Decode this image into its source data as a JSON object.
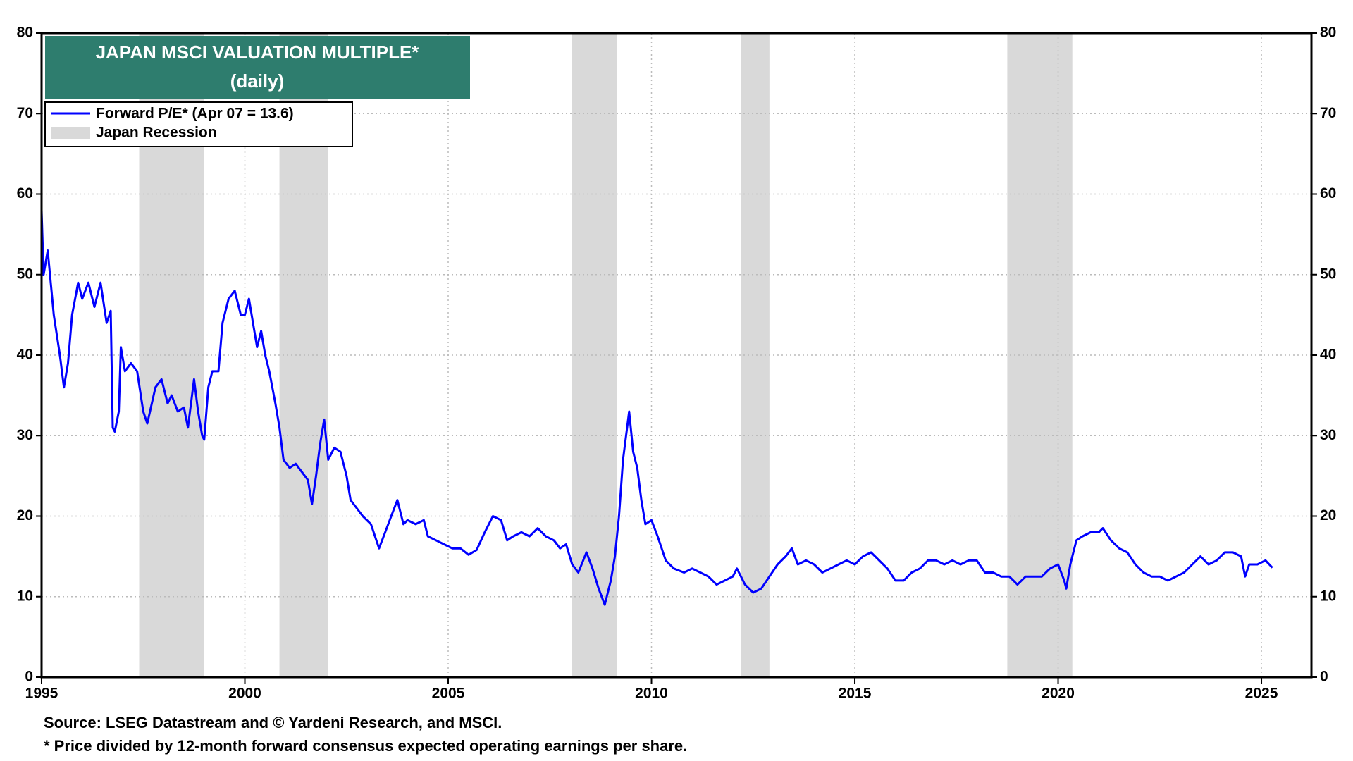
{
  "chart_data": {
    "type": "line",
    "title": "JAPAN MSCI VALUATION MULTIPLE*",
    "subtitle": "(daily)",
    "source": "Source: LSEG Datastream and © Yardeni Research, and MSCI.",
    "note": "* Price divided by 12-month forward consensus expected operating earnings per share.",
    "xlim": [
      1995,
      2026.23
    ],
    "xticks": [
      1995,
      2000,
      2005,
      2010,
      2015,
      2020,
      2025
    ],
    "ylim": [
      0,
      80
    ],
    "yticks": [
      0,
      10,
      20,
      30,
      40,
      50,
      60,
      70,
      80
    ],
    "grid": true,
    "legend": "upper left",
    "recession_label": "Japan Recession",
    "recession_color": "#d9d9d9",
    "recessions": [
      [
        1997.4,
        1999.0
      ],
      [
        2000.85,
        2002.05
      ],
      [
        2008.05,
        2009.15
      ],
      [
        2012.2,
        2012.9
      ],
      [
        2018.75,
        2020.35
      ]
    ],
    "x": [
      1995.0,
      1995.05,
      1995.15,
      1995.3,
      1995.45,
      1995.55,
      1995.65,
      1995.75,
      1995.9,
      1996.0,
      1996.15,
      1996.3,
      1996.45,
      1996.6,
      1996.7,
      1996.75,
      1996.8,
      1996.9,
      1996.95,
      1997.05,
      1997.2,
      1997.35,
      1997.5,
      1997.6,
      1997.8,
      1997.95,
      1998.1,
      1998.2,
      1998.35,
      1998.5,
      1998.6,
      1998.75,
      1998.85,
      1998.95,
      1999.0,
      1999.1,
      1999.2,
      1999.35,
      1999.45,
      1999.6,
      1999.75,
      1999.9,
      2000.0,
      2000.1,
      2000.2,
      2000.3,
      2000.4,
      2000.5,
      2000.6,
      2000.75,
      2000.85,
      2000.95,
      2001.1,
      2001.25,
      2001.4,
      2001.55,
      2001.65,
      2001.75,
      2001.85,
      2001.95,
      2002.05,
      2002.2,
      2002.35,
      2002.5,
      2002.6,
      2002.75,
      2002.9,
      2003.1,
      2003.3,
      2003.45,
      2003.6,
      2003.75,
      2003.9,
      2004.0,
      2004.2,
      2004.4,
      2004.5,
      2004.7,
      2004.9,
      2005.1,
      2005.3,
      2005.5,
      2005.7,
      2005.9,
      2006.1,
      2006.3,
      2006.45,
      2006.6,
      2006.8,
      2007.0,
      2007.2,
      2007.4,
      2007.6,
      2007.75,
      2007.9,
      2008.05,
      2008.2,
      2008.4,
      2008.55,
      2008.7,
      2008.85,
      2009.0,
      2009.1,
      2009.2,
      2009.3,
      2009.45,
      2009.55,
      2009.65,
      2009.75,
      2009.85,
      2010.0,
      2010.15,
      2010.35,
      2010.55,
      2010.8,
      2011.0,
      2011.2,
      2011.4,
      2011.6,
      2011.8,
      2012.0,
      2012.1,
      2012.3,
      2012.5,
      2012.7,
      2012.9,
      2013.1,
      2013.3,
      2013.45,
      2013.6,
      2013.8,
      2014.0,
      2014.2,
      2014.4,
      2014.6,
      2014.8,
      2015.0,
      2015.2,
      2015.4,
      2015.6,
      2015.8,
      2016.0,
      2016.2,
      2016.4,
      2016.6,
      2016.8,
      2017.0,
      2017.2,
      2017.4,
      2017.6,
      2017.8,
      2018.0,
      2018.2,
      2018.4,
      2018.6,
      2018.8,
      2019.0,
      2019.2,
      2019.4,
      2019.6,
      2019.8,
      2020.0,
      2020.15,
      2020.2,
      2020.3,
      2020.45,
      2020.6,
      2020.8,
      2021.0,
      2021.1,
      2021.3,
      2021.5,
      2021.7,
      2021.9,
      2022.1,
      2022.3,
      2022.5,
      2022.7,
      2022.9,
      2023.1,
      2023.3,
      2023.5,
      2023.7,
      2023.9,
      2024.1,
      2024.3,
      2024.5,
      2024.6,
      2024.7,
      2024.9,
      2025.1,
      2025.27
    ],
    "series": [
      {
        "name": "Forward P/E* (Apr 07 = 13.6)",
        "color": "#0000ff",
        "values": [
          58,
          50,
          53,
          45,
          40,
          36,
          39,
          45,
          49,
          47,
          49,
          46,
          49,
          44,
          45.5,
          31,
          30.5,
          33,
          41,
          38,
          39,
          38,
          33,
          31.5,
          36,
          37,
          34,
          35,
          33,
          33.5,
          31,
          37,
          33,
          30,
          29.5,
          36,
          38,
          38,
          44,
          47,
          48,
          45,
          45,
          47,
          44,
          41,
          43,
          40,
          38,
          34,
          31,
          27,
          26,
          26.5,
          25.5,
          24.5,
          21.5,
          25,
          29,
          32,
          27,
          28.5,
          28,
          25,
          22,
          21,
          20,
          19,
          16,
          18,
          20,
          22,
          19,
          19.5,
          19,
          19.5,
          17.5,
          17,
          16.5,
          16,
          16,
          15.2,
          15.8,
          18,
          20,
          19.5,
          17,
          17.5,
          18,
          17.5,
          18.5,
          17.5,
          17,
          16,
          16.5,
          14,
          13,
          15.5,
          13.5,
          11,
          9,
          12,
          15,
          20,
          27,
          33,
          28,
          26,
          22,
          19,
          19.5,
          17.5,
          14.5,
          13.5,
          13,
          13.5,
          13,
          12.5,
          11.5,
          12,
          12.5,
          13.5,
          11.5,
          10.5,
          11,
          12.5,
          14,
          15,
          16,
          14,
          14.5,
          14,
          13,
          13.5,
          14,
          14.5,
          14,
          15,
          15.5,
          14.5,
          13.5,
          12,
          12,
          13,
          13.5,
          14.5,
          14.5,
          14,
          14.5,
          14,
          14.5,
          14.5,
          13,
          13,
          12.5,
          12.5,
          11.5,
          12.5,
          12.5,
          12.5,
          13.5,
          14,
          12,
          11,
          14,
          17,
          17.5,
          18,
          18,
          18.5,
          17,
          16,
          15.5,
          14,
          13,
          12.5,
          12.5,
          12,
          12.5,
          13,
          14,
          15,
          14,
          14.5,
          15.5,
          15.5,
          15,
          12.5,
          14,
          14,
          14.5,
          13.6
        ]
      }
    ]
  }
}
